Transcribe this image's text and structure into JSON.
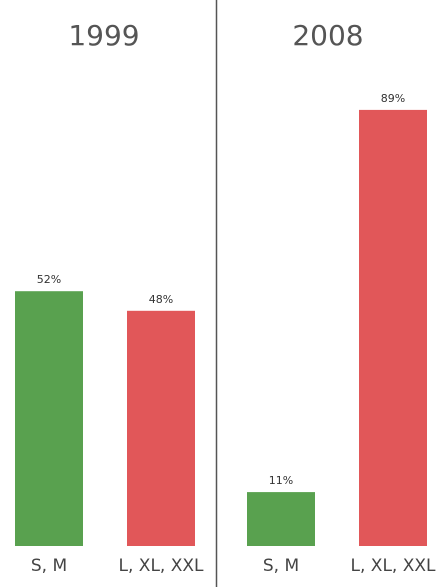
{
  "chart_data": [
    {
      "type": "bar",
      "title": "1999",
      "categories": [
        "S, M",
        "L, XL, XXL"
      ],
      "values": [
        52,
        48
      ],
      "value_labels": [
        "52%",
        "48%"
      ],
      "colors": [
        "#59a14f",
        "#e15759"
      ]
    },
    {
      "type": "bar",
      "title": "2008",
      "categories": [
        "S, M",
        "L, XL, XXL"
      ],
      "values": [
        11,
        89
      ],
      "value_labels": [
        "11%",
        "89%"
      ],
      "colors": [
        "#59a14f",
        "#e15759"
      ]
    }
  ]
}
